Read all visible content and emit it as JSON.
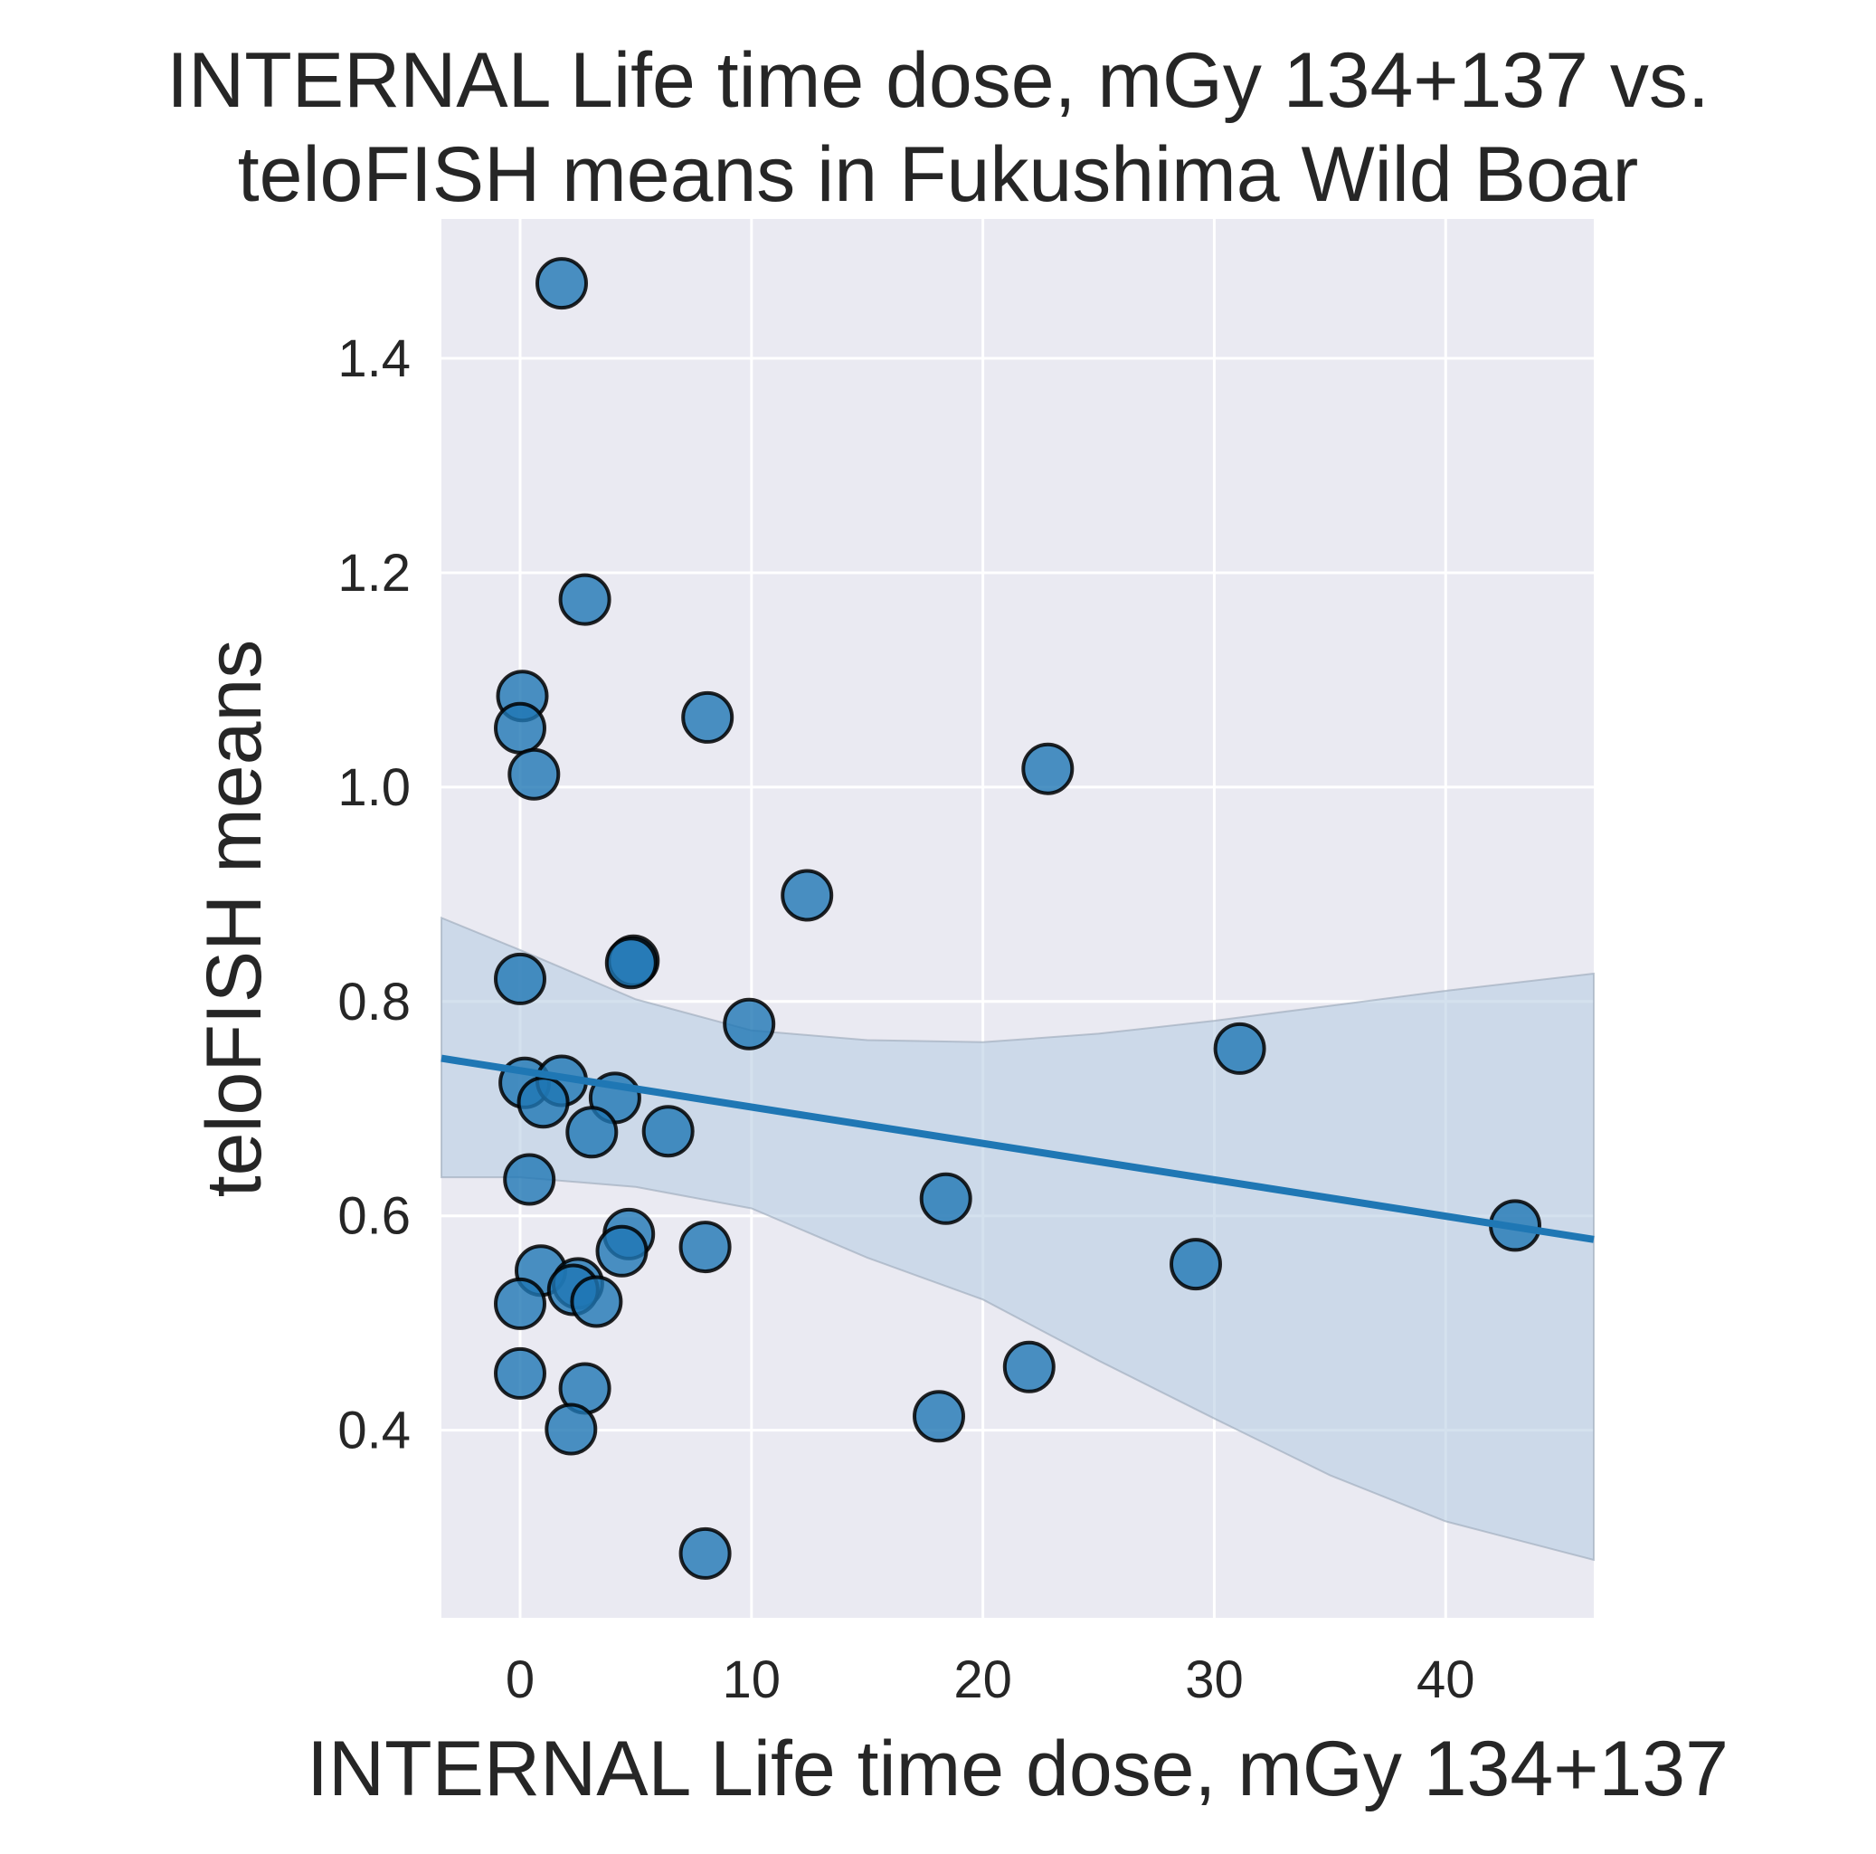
{
  "chart_data": {
    "type": "scatter",
    "title_lines": [
      "INTERNAL Life time dose, mGy 134+137 vs.",
      "teloFISH means in Fukushima Wild Boar"
    ],
    "xlabel": "INTERNAL Life time dose, mGy 134+137",
    "ylabel": "teloFISH means",
    "xlim": [
      -3.4,
      46.4
    ],
    "ylim": [
      0.225,
      1.53
    ],
    "xticks": [
      0,
      10,
      20,
      30,
      40
    ],
    "xtick_labels": [
      "0",
      "10",
      "20",
      "30",
      "40"
    ],
    "yticks": [
      0.4,
      0.6,
      0.8,
      1.0,
      1.2,
      1.4
    ],
    "ytick_labels": [
      "0.4",
      "0.6",
      "0.8",
      "1.0",
      "1.2",
      "1.4"
    ],
    "grid": true,
    "legend": "none",
    "colors": {
      "background": "#eaeaf2",
      "grid": "#ffffff",
      "points": "#1f77b4",
      "point_edge": "#000000",
      "regression_line": "#1f77b4",
      "confidence_band": "#b7cde3"
    },
    "points": [
      {
        "x": 1.8,
        "y": 1.47
      },
      {
        "x": 2.8,
        "y": 1.175
      },
      {
        "x": 0.1,
        "y": 1.085
      },
      {
        "x": 0.0,
        "y": 1.055
      },
      {
        "x": 0.6,
        "y": 1.012
      },
      {
        "x": 8.1,
        "y": 1.065
      },
      {
        "x": 22.8,
        "y": 1.017
      },
      {
        "x": 12.4,
        "y": 0.899
      },
      {
        "x": 0.0,
        "y": 0.821
      },
      {
        "x": 4.9,
        "y": 0.838
      },
      {
        "x": 4.8,
        "y": 0.836
      },
      {
        "x": 9.9,
        "y": 0.779
      },
      {
        "x": 31.1,
        "y": 0.756
      },
      {
        "x": 0.2,
        "y": 0.724
      },
      {
        "x": 1.8,
        "y": 0.726
      },
      {
        "x": 1.0,
        "y": 0.706
      },
      {
        "x": 4.1,
        "y": 0.71
      },
      {
        "x": 3.1,
        "y": 0.678
      },
      {
        "x": 6.4,
        "y": 0.679
      },
      {
        "x": 0.4,
        "y": 0.634
      },
      {
        "x": 18.4,
        "y": 0.616
      },
      {
        "x": 43.0,
        "y": 0.591
      },
      {
        "x": 4.7,
        "y": 0.583
      },
      {
        "x": 4.4,
        "y": 0.567
      },
      {
        "x": 8.0,
        "y": 0.571
      },
      {
        "x": 29.2,
        "y": 0.555
      },
      {
        "x": 0.9,
        "y": 0.549
      },
      {
        "x": 2.5,
        "y": 0.537
      },
      {
        "x": 2.3,
        "y": 0.531
      },
      {
        "x": 3.3,
        "y": 0.52
      },
      {
        "x": 0.0,
        "y": 0.518
      },
      {
        "x": 0.0,
        "y": 0.453
      },
      {
        "x": 22.0,
        "y": 0.459
      },
      {
        "x": 2.8,
        "y": 0.439
      },
      {
        "x": 18.1,
        "y": 0.413
      },
      {
        "x": 2.2,
        "y": 0.401
      },
      {
        "x": 8.0,
        "y": 0.285
      }
    ],
    "regression_line": {
      "x": [
        -3.4,
        46.4
      ],
      "y": [
        0.747,
        0.578
      ]
    },
    "confidence_band": {
      "x": [
        -3.4,
        0,
        5,
        10,
        15,
        20,
        25,
        30,
        35,
        40,
        46.4
      ],
      "upper": [
        0.878,
        0.848,
        0.802,
        0.773,
        0.764,
        0.762,
        0.77,
        0.782,
        0.796,
        0.81,
        0.826
      ],
      "lower": [
        0.636,
        0.636,
        0.627,
        0.607,
        0.561,
        0.522,
        0.465,
        0.411,
        0.358,
        0.315,
        0.279
      ]
    }
  }
}
